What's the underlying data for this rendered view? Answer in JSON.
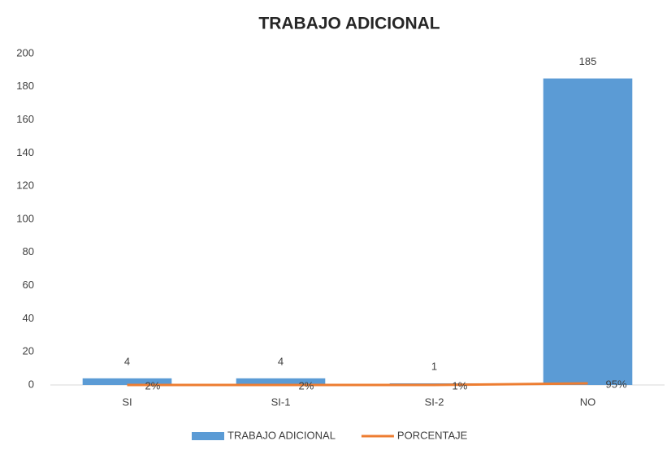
{
  "chart_data": {
    "type": "bar_line",
    "title": "TRABAJO ADICIONAL",
    "categories": [
      "SI",
      "SI-1",
      "SI-2",
      "NO"
    ],
    "series": [
      {
        "name": "TRABAJO ADICIONAL",
        "type": "bar",
        "color": "#5b9bd5",
        "values": [
          4,
          4,
          1,
          185
        ]
      },
      {
        "name": "PORCENTAJE",
        "type": "line",
        "color": "#ed7d31",
        "values": [
          0.02,
          0.02,
          0.01,
          0.95
        ],
        "value_labels": [
          "2%",
          "2%",
          "1%",
          "95%"
        ]
      }
    ],
    "ylim": [
      0,
      200
    ],
    "yticks": [
      0,
      20,
      40,
      60,
      80,
      100,
      120,
      140,
      160,
      180,
      200
    ],
    "grid": false,
    "legend": "bottom"
  }
}
